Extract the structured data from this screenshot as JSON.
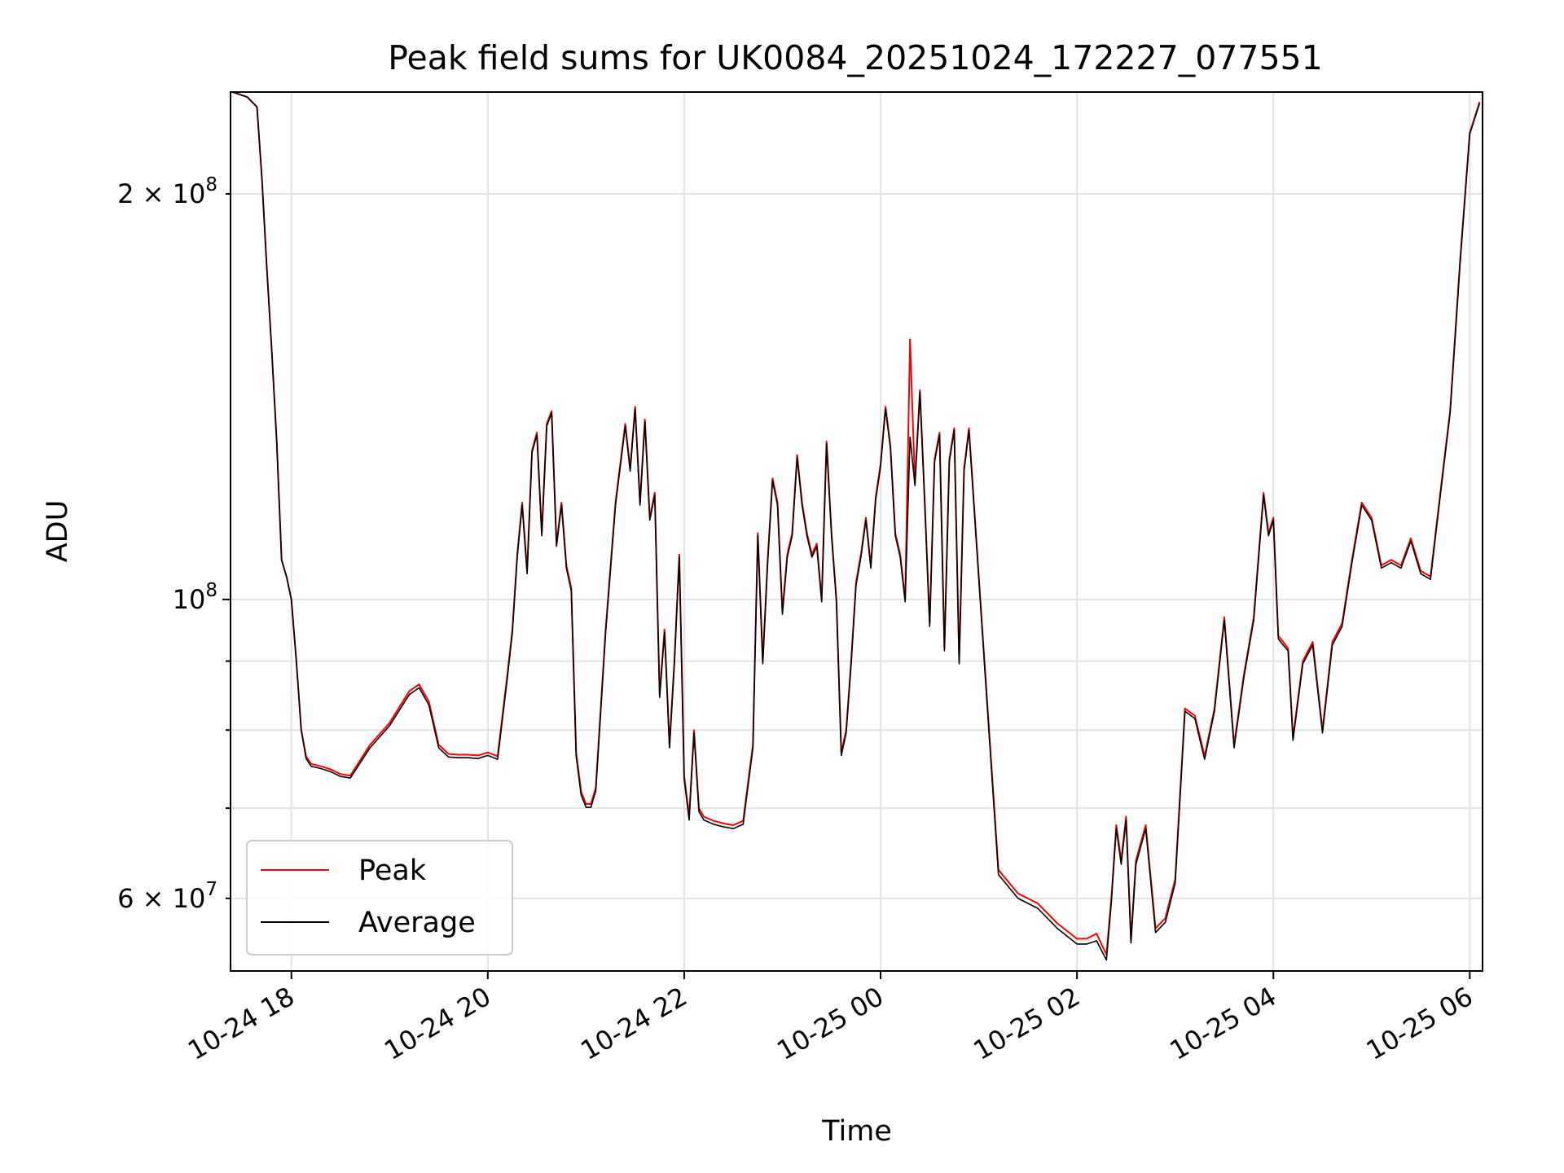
{
  "chart_data": {
    "type": "line",
    "title": "Peak field sums for UK0084_20251024_172227_077551",
    "xlabel": "Time",
    "ylabel": "ADU",
    "yscale": "log",
    "ylim": [
      53000000,
      238000000
    ],
    "grid": true,
    "legend_position": "bottom-left",
    "x_range_hours": [
      -0.62,
      12.13
    ],
    "x_ticks": [
      {
        "hours": 0,
        "label": "10-24 18"
      },
      {
        "hours": 2,
        "label": "10-24 20"
      },
      {
        "hours": 4,
        "label": "10-24 22"
      },
      {
        "hours": 6,
        "label": "10-25 00"
      },
      {
        "hours": 8,
        "label": "10-25 02"
      },
      {
        "hours": 10,
        "label": "10-25 04"
      },
      {
        "hours": 12,
        "label": "10-25 06"
      }
    ],
    "y_ticks_major": [
      {
        "value": 100000000,
        "mantissa": "10",
        "exponent": "8"
      }
    ],
    "y_ticks_labeled_minor": [
      {
        "value": 200000000,
        "mantissa": "2 × 10",
        "exponent": "8"
      },
      {
        "value": 60000000,
        "mantissa": "6 × 10",
        "exponent": "7"
      }
    ],
    "y_ticks_minor_unlabeled": [
      70000000,
      80000000,
      90000000
    ],
    "x_hours": [
      -0.6,
      -0.45,
      -0.35,
      -0.3,
      -0.25,
      -0.2,
      -0.15,
      -0.1,
      -0.05,
      0.0,
      0.05,
      0.1,
      0.15,
      0.2,
      0.3,
      0.4,
      0.5,
      0.6,
      0.8,
      1.0,
      1.2,
      1.3,
      1.4,
      1.5,
      1.6,
      1.7,
      1.8,
      1.9,
      2.0,
      2.1,
      2.2,
      2.25,
      2.3,
      2.35,
      2.4,
      2.45,
      2.5,
      2.55,
      2.6,
      2.65,
      2.7,
      2.75,
      2.8,
      2.85,
      2.9,
      2.95,
      3.0,
      3.05,
      3.1,
      3.2,
      3.3,
      3.4,
      3.45,
      3.5,
      3.55,
      3.6,
      3.65,
      3.7,
      3.75,
      3.8,
      3.85,
      3.9,
      3.95,
      4.0,
      4.05,
      4.1,
      4.15,
      4.2,
      4.3,
      4.4,
      4.5,
      4.6,
      4.7,
      4.75,
      4.8,
      4.85,
      4.9,
      4.95,
      5.0,
      5.05,
      5.1,
      5.15,
      5.2,
      5.25,
      5.3,
      5.35,
      5.4,
      5.45,
      5.5,
      5.55,
      5.6,
      5.65,
      5.7,
      5.75,
      5.8,
      5.85,
      5.9,
      5.95,
      6.0,
      6.05,
      6.1,
      6.15,
      6.2,
      6.25,
      6.3,
      6.35,
      6.4,
      6.45,
      6.5,
      6.55,
      6.6,
      6.65,
      6.7,
      6.75,
      6.8,
      6.85,
      6.9,
      7.0,
      7.2,
      7.4,
      7.6,
      7.8,
      8.0,
      8.1,
      8.2,
      8.3,
      8.35,
      8.4,
      8.45,
      8.5,
      8.55,
      8.6,
      8.7,
      8.8,
      8.9,
      9.0,
      9.1,
      9.2,
      9.3,
      9.4,
      9.5,
      9.6,
      9.7,
      9.8,
      9.9,
      9.95,
      10.0,
      10.05,
      10.1,
      10.15,
      10.2,
      10.3,
      10.4,
      10.5,
      10.6,
      10.7,
      10.8,
      10.9,
      11.0,
      11.1,
      11.2,
      11.3,
      11.4,
      11.5,
      11.6,
      11.7,
      11.8,
      11.9,
      12.0,
      12.1
    ],
    "series": [
      {
        "name": "Peak",
        "color": "#ff0000",
        "values": [
          238000000,
          236000000,
          232000000,
          205000000,
          176000000,
          153000000,
          131000000,
          107000000,
          104000000,
          100000000,
          90000000,
          80000000,
          76500000,
          75500000,
          75200000,
          74800000,
          74200000,
          74000000,
          78000000,
          81000000,
          85500000,
          86500000,
          84000000,
          78000000,
          76800000,
          76700000,
          76700000,
          76600000,
          77000000,
          76500000,
          88000000,
          95000000,
          108000000,
          118000000,
          105000000,
          129000000,
          133000000,
          112000000,
          135000000,
          138000000,
          110000000,
          118000000,
          106000000,
          102000000,
          77000000,
          72000000,
          70500000,
          70500000,
          72500000,
          95000000,
          118000000,
          135000000,
          125000000,
          139000000,
          118000000,
          136000000,
          115000000,
          120000000,
          85000000,
          95000000,
          78000000,
          90000000,
          108000000,
          74000000,
          69000000,
          80000000,
          70000000,
          69000000,
          68500000,
          68200000,
          68000000,
          68500000,
          78000000,
          112000000,
          90000000,
          107000000,
          123000000,
          118000000,
          98000000,
          108000000,
          112000000,
          128000000,
          118000000,
          112000000,
          108000000,
          110000000,
          100000000,
          131000000,
          112000000,
          100000000,
          77000000,
          80000000,
          90000000,
          103000000,
          108000000,
          115000000,
          106000000,
          119000000,
          126000000,
          139000000,
          130000000,
          112000000,
          108000000,
          100000000,
          156000000,
          122000000,
          143000000,
          118000000,
          96000000,
          127000000,
          133000000,
          92000000,
          127000000,
          134000000,
          90000000,
          125000000,
          134000000,
          104000000,
          63000000,
          60500000,
          59500000,
          57500000,
          56000000,
          56000000,
          56500000,
          54500000,
          60000000,
          68000000,
          64000000,
          69000000,
          56000000,
          64000000,
          68000000,
          57000000,
          58000000,
          62000000,
          83000000,
          82000000,
          76500000,
          83000000,
          97000000,
          78000000,
          88000000,
          97000000,
          120000000,
          112000000,
          115000000,
          94000000,
          93000000,
          92000000,
          79000000,
          90000000,
          93000000,
          80000000,
          93000000,
          96000000,
          107000000,
          118000000,
          115000000,
          106000000,
          107000000,
          106000000,
          111000000,
          105000000,
          104000000,
          120000000,
          138000000,
          178000000,
          222000000,
          234000000
        ]
      },
      {
        "name": "Average",
        "color": "#000000",
        "values": [
          238000000,
          236000000,
          232000000,
          205000000,
          176000000,
          153000000,
          131000000,
          107000000,
          104000000,
          100000000,
          90000000,
          80000000,
          76200000,
          75200000,
          74900000,
          74500000,
          73900000,
          73700000,
          77600000,
          80600000,
          85000000,
          86000000,
          83500000,
          77600000,
          76400000,
          76300000,
          76300000,
          76200000,
          76600000,
          76100000,
          87500000,
          94500000,
          107500000,
          117500000,
          104500000,
          128500000,
          132500000,
          111500000,
          134500000,
          137500000,
          109500000,
          117500000,
          105500000,
          101500000,
          76500000,
          71600000,
          70100000,
          70100000,
          72100000,
          94500000,
          117500000,
          134500000,
          124500000,
          138500000,
          117500000,
          135500000,
          114500000,
          119500000,
          84600000,
          94500000,
          77600000,
          89600000,
          107500000,
          73600000,
          68600000,
          79600000,
          69600000,
          68600000,
          68100000,
          67800000,
          67600000,
          68100000,
          77600000,
          111500000,
          89600000,
          106500000,
          122500000,
          117500000,
          97500000,
          107500000,
          111500000,
          127500000,
          117500000,
          111500000,
          107500000,
          109500000,
          99600000,
          130500000,
          111500000,
          99600000,
          76600000,
          79600000,
          89600000,
          102500000,
          107500000,
          114500000,
          105500000,
          118500000,
          125500000,
          138500000,
          129500000,
          111500000,
          107500000,
          99600000,
          132000000,
          121500000,
          142500000,
          117500000,
          95500000,
          126500000,
          132500000,
          91600000,
          126500000,
          133500000,
          89600000,
          124500000,
          133500000,
          103500000,
          62500000,
          60000000,
          59000000,
          57000000,
          55500000,
          55500000,
          55800000,
          54000000,
          59600000,
          67600000,
          63600000,
          68600000,
          55600000,
          63600000,
          67600000,
          56600000,
          57600000,
          61600000,
          82600000,
          81600000,
          76100000,
          82600000,
          96500000,
          77600000,
          87600000,
          96500000,
          119500000,
          111500000,
          114500000,
          93500000,
          92500000,
          91600000,
          78600000,
          89600000,
          92500000,
          79600000,
          92500000,
          95500000,
          106500000,
          117500000,
          114500000,
          105500000,
          106500000,
          105500000,
          110500000,
          104500000,
          103500000,
          119500000,
          137500000,
          177000000,
          221500000,
          233500000
        ]
      }
    ]
  }
}
